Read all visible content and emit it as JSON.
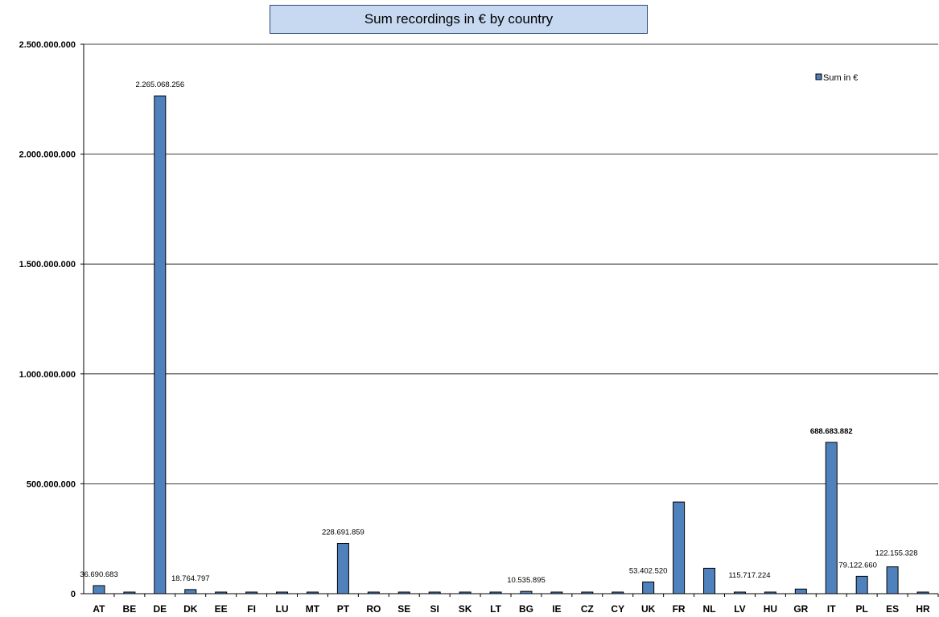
{
  "chart_data": {
    "type": "bar",
    "title": "Sum recordings in € by country",
    "xlabel": "",
    "ylabel": "",
    "ylim": [
      0,
      2500000000
    ],
    "yticks": [
      0,
      500000000,
      1000000000,
      1500000000,
      2000000000,
      2500000000
    ],
    "ytick_labels": [
      "0",
      "500.000.000",
      "1.000.000.000",
      "1.500.000.000",
      "2.000.000.000",
      "2.500.000.000"
    ],
    "grid": true,
    "legend_position": "top-right",
    "colors": {
      "bar": "#4f81bd",
      "bar_edge": "#000000",
      "title_bg": "#c6d9f1",
      "grid": "#000000"
    },
    "categories": [
      "AT",
      "BE",
      "DE",
      "DK",
      "EE",
      "FI",
      "LU",
      "MT",
      "PT",
      "RO",
      "SE",
      "SI",
      "SK",
      "LT",
      "BG",
      "IE",
      "CZ",
      "CY",
      "UK",
      "FR",
      "NL",
      "LV",
      "HU",
      "GR",
      "IT",
      "PL",
      "ES",
      "HR"
    ],
    "series": [
      {
        "name": "Sum in €",
        "values": [
          36690683,
          1000000,
          2265068256,
          18764797,
          1000000,
          6000000,
          1000000,
          1000000,
          228691859,
          1000000,
          1000000,
          1000000,
          1000000,
          1000000,
          10535895,
          1000000,
          1000000,
          1000000,
          53402520,
          417000000,
          115717224,
          1000000,
          6000000,
          21000000,
          688683882,
          79122660,
          122155328,
          1000000
        ]
      }
    ],
    "data_labels": [
      {
        "category": "AT",
        "text": "36.690.683",
        "bold": false
      },
      {
        "category": "DE",
        "text": "2.265.068.256",
        "bold": false
      },
      {
        "category": "DK",
        "text": "18.764.797",
        "bold": false
      },
      {
        "category": "PT",
        "text": "228.691.859",
        "bold": false
      },
      {
        "category": "BG",
        "text": "10.535.895",
        "bold": false
      },
      {
        "category": "UK",
        "text": "53.402.520",
        "bold": false
      },
      {
        "category": "NL",
        "text": "115.717.224",
        "bold": false
      },
      {
        "category": "IT",
        "text": "688.683.882",
        "bold": true
      },
      {
        "category": "PL",
        "text": "79.122.660",
        "bold": false
      },
      {
        "category": "ES",
        "text": "122.155.328",
        "bold": false
      }
    ]
  }
}
